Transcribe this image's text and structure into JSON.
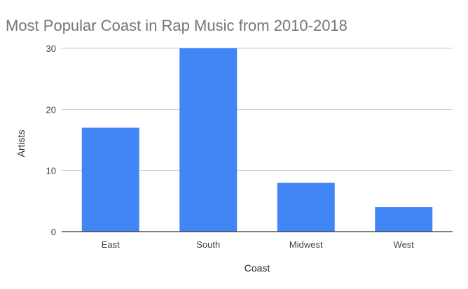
{
  "chart_data": {
    "type": "bar",
    "title": "Most Popular Coast in Rap Music from 2010-2018",
    "xlabel": "Coast",
    "ylabel": "Artists",
    "categories": [
      "East",
      "South",
      "Midwest",
      "West"
    ],
    "values": [
      17,
      30,
      8,
      4
    ],
    "ylim": [
      0,
      30
    ],
    "yticks": [
      0,
      10,
      20,
      30
    ],
    "grid": true,
    "legend": "none",
    "bar_color": "#4285f4"
  }
}
